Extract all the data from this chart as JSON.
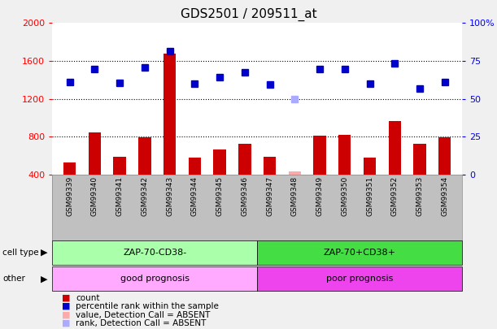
{
  "title": "GDS2501 / 209511_at",
  "samples": [
    "GSM99339",
    "GSM99340",
    "GSM99341",
    "GSM99342",
    "GSM99343",
    "GSM99344",
    "GSM99345",
    "GSM99346",
    "GSM99347",
    "GSM99348",
    "GSM99349",
    "GSM99350",
    "GSM99351",
    "GSM99352",
    "GSM99353",
    "GSM99354"
  ],
  "bar_values": [
    530,
    840,
    590,
    790,
    1680,
    580,
    660,
    720,
    590,
    430,
    810,
    820,
    580,
    960,
    720,
    790
  ],
  "bar_colors": [
    "#cc0000",
    "#cc0000",
    "#cc0000",
    "#cc0000",
    "#cc0000",
    "#cc0000",
    "#cc0000",
    "#cc0000",
    "#cc0000",
    "#ffaaaa",
    "#cc0000",
    "#cc0000",
    "#cc0000",
    "#cc0000",
    "#cc0000",
    "#cc0000"
  ],
  "dot_values": [
    1380,
    1510,
    1370,
    1530,
    1700,
    1360,
    1430,
    1480,
    1350,
    1200,
    1510,
    1510,
    1360,
    1570,
    1310,
    1380
  ],
  "dot_colors": [
    "#0000cc",
    "#0000cc",
    "#0000cc",
    "#0000cc",
    "#0000cc",
    "#0000cc",
    "#0000cc",
    "#0000cc",
    "#0000cc",
    "#aaaaff",
    "#0000cc",
    "#0000cc",
    "#0000cc",
    "#0000cc",
    "#0000cc",
    "#0000cc"
  ],
  "ylim_left": [
    400,
    2000
  ],
  "ylim_right": [
    0,
    100
  ],
  "yticks_left": [
    400,
    800,
    1200,
    1600,
    2000
  ],
  "yticks_right": [
    0,
    25,
    50,
    75,
    100
  ],
  "cell_type_labels": [
    "ZAP-70-CD38-",
    "ZAP-70+CD38+"
  ],
  "cell_type_colors": [
    "#aaffaa",
    "#44dd44"
  ],
  "other_labels": [
    "good prognosis",
    "poor prognosis"
  ],
  "other_colors": [
    "#ffaaff",
    "#ee44ee"
  ],
  "split_index": 8,
  "n_samples": 16,
  "bg_color": "#c0c0c0",
  "plot_bg_color": "#ffffff",
  "bar_width": 0.5,
  "legend_items": [
    {
      "label": "count",
      "color": "#cc0000"
    },
    {
      "label": "percentile rank within the sample",
      "color": "#0000cc"
    },
    {
      "label": "value, Detection Call = ABSENT",
      "color": "#ffaaaa"
    },
    {
      "label": "rank, Detection Call = ABSENT",
      "color": "#aaaaff"
    }
  ]
}
